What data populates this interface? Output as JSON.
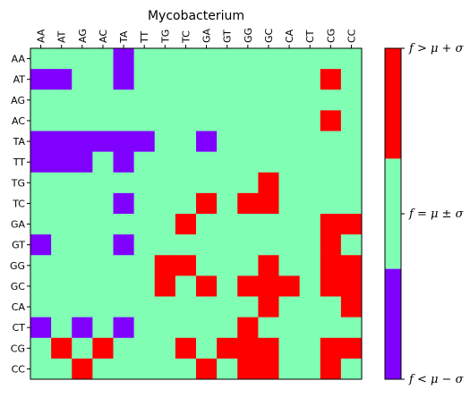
{
  "chart_data": {
    "type": "heatmap",
    "title": "Mycobacterium",
    "xlabel": "",
    "ylabel": "",
    "x_categories": [
      "AA",
      "AT",
      "AG",
      "AC",
      "TA",
      "TT",
      "TG",
      "TC",
      "GA",
      "GT",
      "GG",
      "GC",
      "CA",
      "CT",
      "CG",
      "CC"
    ],
    "y_categories": [
      "AA",
      "AT",
      "AG",
      "AC",
      "TA",
      "TT",
      "TG",
      "TC",
      "GA",
      "GT",
      "GG",
      "GC",
      "CA",
      "CT",
      "CG",
      "CC"
    ],
    "value_encoding": {
      "-1": "f < μ − σ",
      "0": "f = μ ± σ",
      "1": "f > μ + σ"
    },
    "values": [
      [
        0,
        0,
        0,
        0,
        -1,
        0,
        0,
        0,
        0,
        0,
        0,
        0,
        0,
        0,
        0,
        0
      ],
      [
        -1,
        -1,
        0,
        0,
        -1,
        0,
        0,
        0,
        0,
        0,
        0,
        0,
        0,
        0,
        1,
        0
      ],
      [
        0,
        0,
        0,
        0,
        0,
        0,
        0,
        0,
        0,
        0,
        0,
        0,
        0,
        0,
        0,
        0
      ],
      [
        0,
        0,
        0,
        0,
        0,
        0,
        0,
        0,
        0,
        0,
        0,
        0,
        0,
        0,
        1,
        0
      ],
      [
        -1,
        -1,
        -1,
        -1,
        -1,
        -1,
        0,
        0,
        -1,
        0,
        0,
        0,
        0,
        0,
        0,
        0
      ],
      [
        -1,
        -1,
        -1,
        0,
        -1,
        0,
        0,
        0,
        0,
        0,
        0,
        0,
        0,
        0,
        0,
        0
      ],
      [
        0,
        0,
        0,
        0,
        0,
        0,
        0,
        0,
        0,
        0,
        0,
        1,
        0,
        0,
        0,
        0
      ],
      [
        0,
        0,
        0,
        0,
        -1,
        0,
        0,
        0,
        1,
        0,
        1,
        1,
        0,
        0,
        0,
        0
      ],
      [
        0,
        0,
        0,
        0,
        0,
        0,
        0,
        1,
        0,
        0,
        0,
        0,
        0,
        0,
        1,
        1
      ],
      [
        -1,
        0,
        0,
        0,
        -1,
        0,
        0,
        0,
        0,
        0,
        0,
        0,
        0,
        0,
        1,
        0
      ],
      [
        0,
        0,
        0,
        0,
        0,
        0,
        1,
        1,
        0,
        0,
        0,
        1,
        0,
        0,
        1,
        1
      ],
      [
        0,
        0,
        0,
        0,
        0,
        0,
        1,
        0,
        1,
        0,
        1,
        1,
        1,
        0,
        1,
        1
      ],
      [
        0,
        0,
        0,
        0,
        0,
        0,
        0,
        0,
        0,
        0,
        0,
        1,
        0,
        0,
        0,
        1
      ],
      [
        -1,
        0,
        -1,
        0,
        -1,
        0,
        0,
        0,
        0,
        0,
        1,
        0,
        0,
        0,
        0,
        0
      ],
      [
        0,
        1,
        0,
        1,
        0,
        0,
        0,
        1,
        0,
        1,
        1,
        1,
        0,
        0,
        1,
        1
      ],
      [
        0,
        0,
        1,
        0,
        0,
        0,
        0,
        0,
        1,
        0,
        1,
        1,
        0,
        0,
        1,
        0
      ]
    ],
    "colors": {
      "low": "#8000ff",
      "mid": "#80ffb4",
      "high": "#ff0000"
    },
    "colorbar": {
      "labels": [
        "f > μ + σ",
        "f = μ ± σ",
        "f < μ − σ"
      ]
    }
  }
}
